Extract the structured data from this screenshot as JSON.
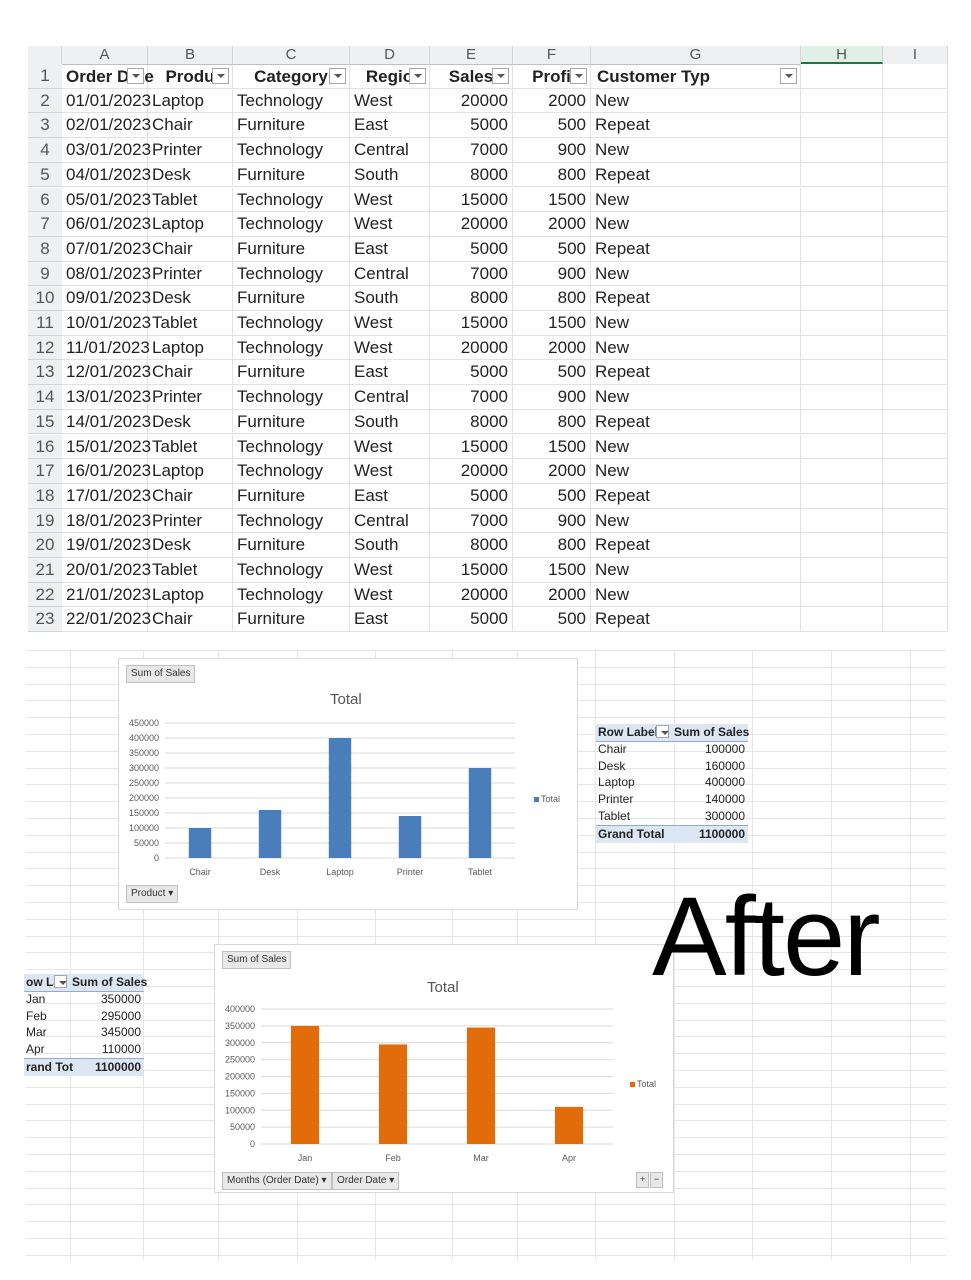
{
  "sheet": {
    "columns": [
      "A",
      "B",
      "C",
      "D",
      "E",
      "F",
      "G",
      "H",
      "I"
    ],
    "headers": [
      "Order Date",
      "Produ",
      "Category",
      "Regio",
      "Sales",
      "Profi",
      "Customer Typ"
    ],
    "rows": [
      [
        "01/01/2023",
        "Laptop",
        "Technology",
        "West",
        "20000",
        "2000",
        "New"
      ],
      [
        "02/01/2023",
        "Chair",
        "Furniture",
        "East",
        "5000",
        "500",
        "Repeat"
      ],
      [
        "03/01/2023",
        "Printer",
        "Technology",
        "Central",
        "7000",
        "900",
        "New"
      ],
      [
        "04/01/2023",
        "Desk",
        "Furniture",
        "South",
        "8000",
        "800",
        "Repeat"
      ],
      [
        "05/01/2023",
        "Tablet",
        "Technology",
        "West",
        "15000",
        "1500",
        "New"
      ],
      [
        "06/01/2023",
        "Laptop",
        "Technology",
        "West",
        "20000",
        "2000",
        "New"
      ],
      [
        "07/01/2023",
        "Chair",
        "Furniture",
        "East",
        "5000",
        "500",
        "Repeat"
      ],
      [
        "08/01/2023",
        "Printer",
        "Technology",
        "Central",
        "7000",
        "900",
        "New"
      ],
      [
        "09/01/2023",
        "Desk",
        "Furniture",
        "South",
        "8000",
        "800",
        "Repeat"
      ],
      [
        "10/01/2023",
        "Tablet",
        "Technology",
        "West",
        "15000",
        "1500",
        "New"
      ],
      [
        "11/01/2023",
        "Laptop",
        "Technology",
        "West",
        "20000",
        "2000",
        "New"
      ],
      [
        "12/01/2023",
        "Chair",
        "Furniture",
        "East",
        "5000",
        "500",
        "Repeat"
      ],
      [
        "13/01/2023",
        "Printer",
        "Technology",
        "Central",
        "7000",
        "900",
        "New"
      ],
      [
        "14/01/2023",
        "Desk",
        "Furniture",
        "South",
        "8000",
        "800",
        "Repeat"
      ],
      [
        "15/01/2023",
        "Tablet",
        "Technology",
        "West",
        "15000",
        "1500",
        "New"
      ],
      [
        "16/01/2023",
        "Laptop",
        "Technology",
        "West",
        "20000",
        "2000",
        "New"
      ],
      [
        "17/01/2023",
        "Chair",
        "Furniture",
        "East",
        "5000",
        "500",
        "Repeat"
      ],
      [
        "18/01/2023",
        "Printer",
        "Technology",
        "Central",
        "7000",
        "900",
        "New"
      ],
      [
        "19/01/2023",
        "Desk",
        "Furniture",
        "South",
        "8000",
        "800",
        "Repeat"
      ],
      [
        "20/01/2023",
        "Tablet",
        "Technology",
        "West",
        "15000",
        "1500",
        "New"
      ],
      [
        "21/01/2023",
        "Laptop",
        "Technology",
        "West",
        "20000",
        "2000",
        "New"
      ],
      [
        "22/01/2023",
        "Chair",
        "Furniture",
        "East",
        "5000",
        "500",
        "Repeat"
      ]
    ]
  },
  "chart1": {
    "field_button": "Sum of Sales",
    "axis_button": "Product",
    "colors": {
      "bar": "#4a7ebb"
    },
    "chart_data": {
      "type": "bar",
      "title": "Total",
      "categories": [
        "Chair",
        "Desk",
        "Laptop",
        "Printer",
        "Tablet"
      ],
      "series": [
        {
          "name": "Total",
          "values": [
            100000,
            160000,
            400000,
            140000,
            300000
          ]
        }
      ],
      "ylim": [
        0,
        450000
      ],
      "yticks": [
        "0",
        "50000",
        "100000",
        "150000",
        "200000",
        "250000",
        "300000",
        "350000",
        "400000",
        "450000"
      ],
      "grid": true,
      "legend": "right"
    }
  },
  "pivot1": {
    "headers": [
      "Row Labels",
      "Sum of Sales"
    ],
    "rows": [
      [
        "Chair",
        "100000"
      ],
      [
        "Desk",
        "160000"
      ],
      [
        "Laptop",
        "400000"
      ],
      [
        "Printer",
        "140000"
      ],
      [
        "Tablet",
        "300000"
      ]
    ],
    "total": [
      "Grand Total",
      "1100000"
    ]
  },
  "chart2": {
    "field_button": "Sum of Sales",
    "axis_buttons": [
      "Months (Order Date)",
      "Order Date"
    ],
    "zoom_buttons": [
      "+",
      "−"
    ],
    "colors": {
      "bar": "#e36c0a"
    },
    "chart_data": {
      "type": "bar",
      "title": "Total",
      "categories": [
        "Jan",
        "Feb",
        "Mar",
        "Apr"
      ],
      "series": [
        {
          "name": "Total",
          "values": [
            350000,
            295000,
            345000,
            110000
          ]
        }
      ],
      "ylim": [
        0,
        400000
      ],
      "yticks": [
        "0",
        "50000",
        "100000",
        "150000",
        "200000",
        "250000",
        "300000",
        "350000",
        "400000"
      ],
      "grid": true,
      "legend": "right"
    }
  },
  "pivot2": {
    "headers": [
      "ow La",
      "Sum of Sales"
    ],
    "rows": [
      [
        "Jan",
        "350000"
      ],
      [
        "Feb",
        "295000"
      ],
      [
        "Mar",
        "345000"
      ],
      [
        "Apr",
        "110000"
      ]
    ],
    "total": [
      "rand Tot",
      "1100000"
    ]
  },
  "overlay_text": "After"
}
